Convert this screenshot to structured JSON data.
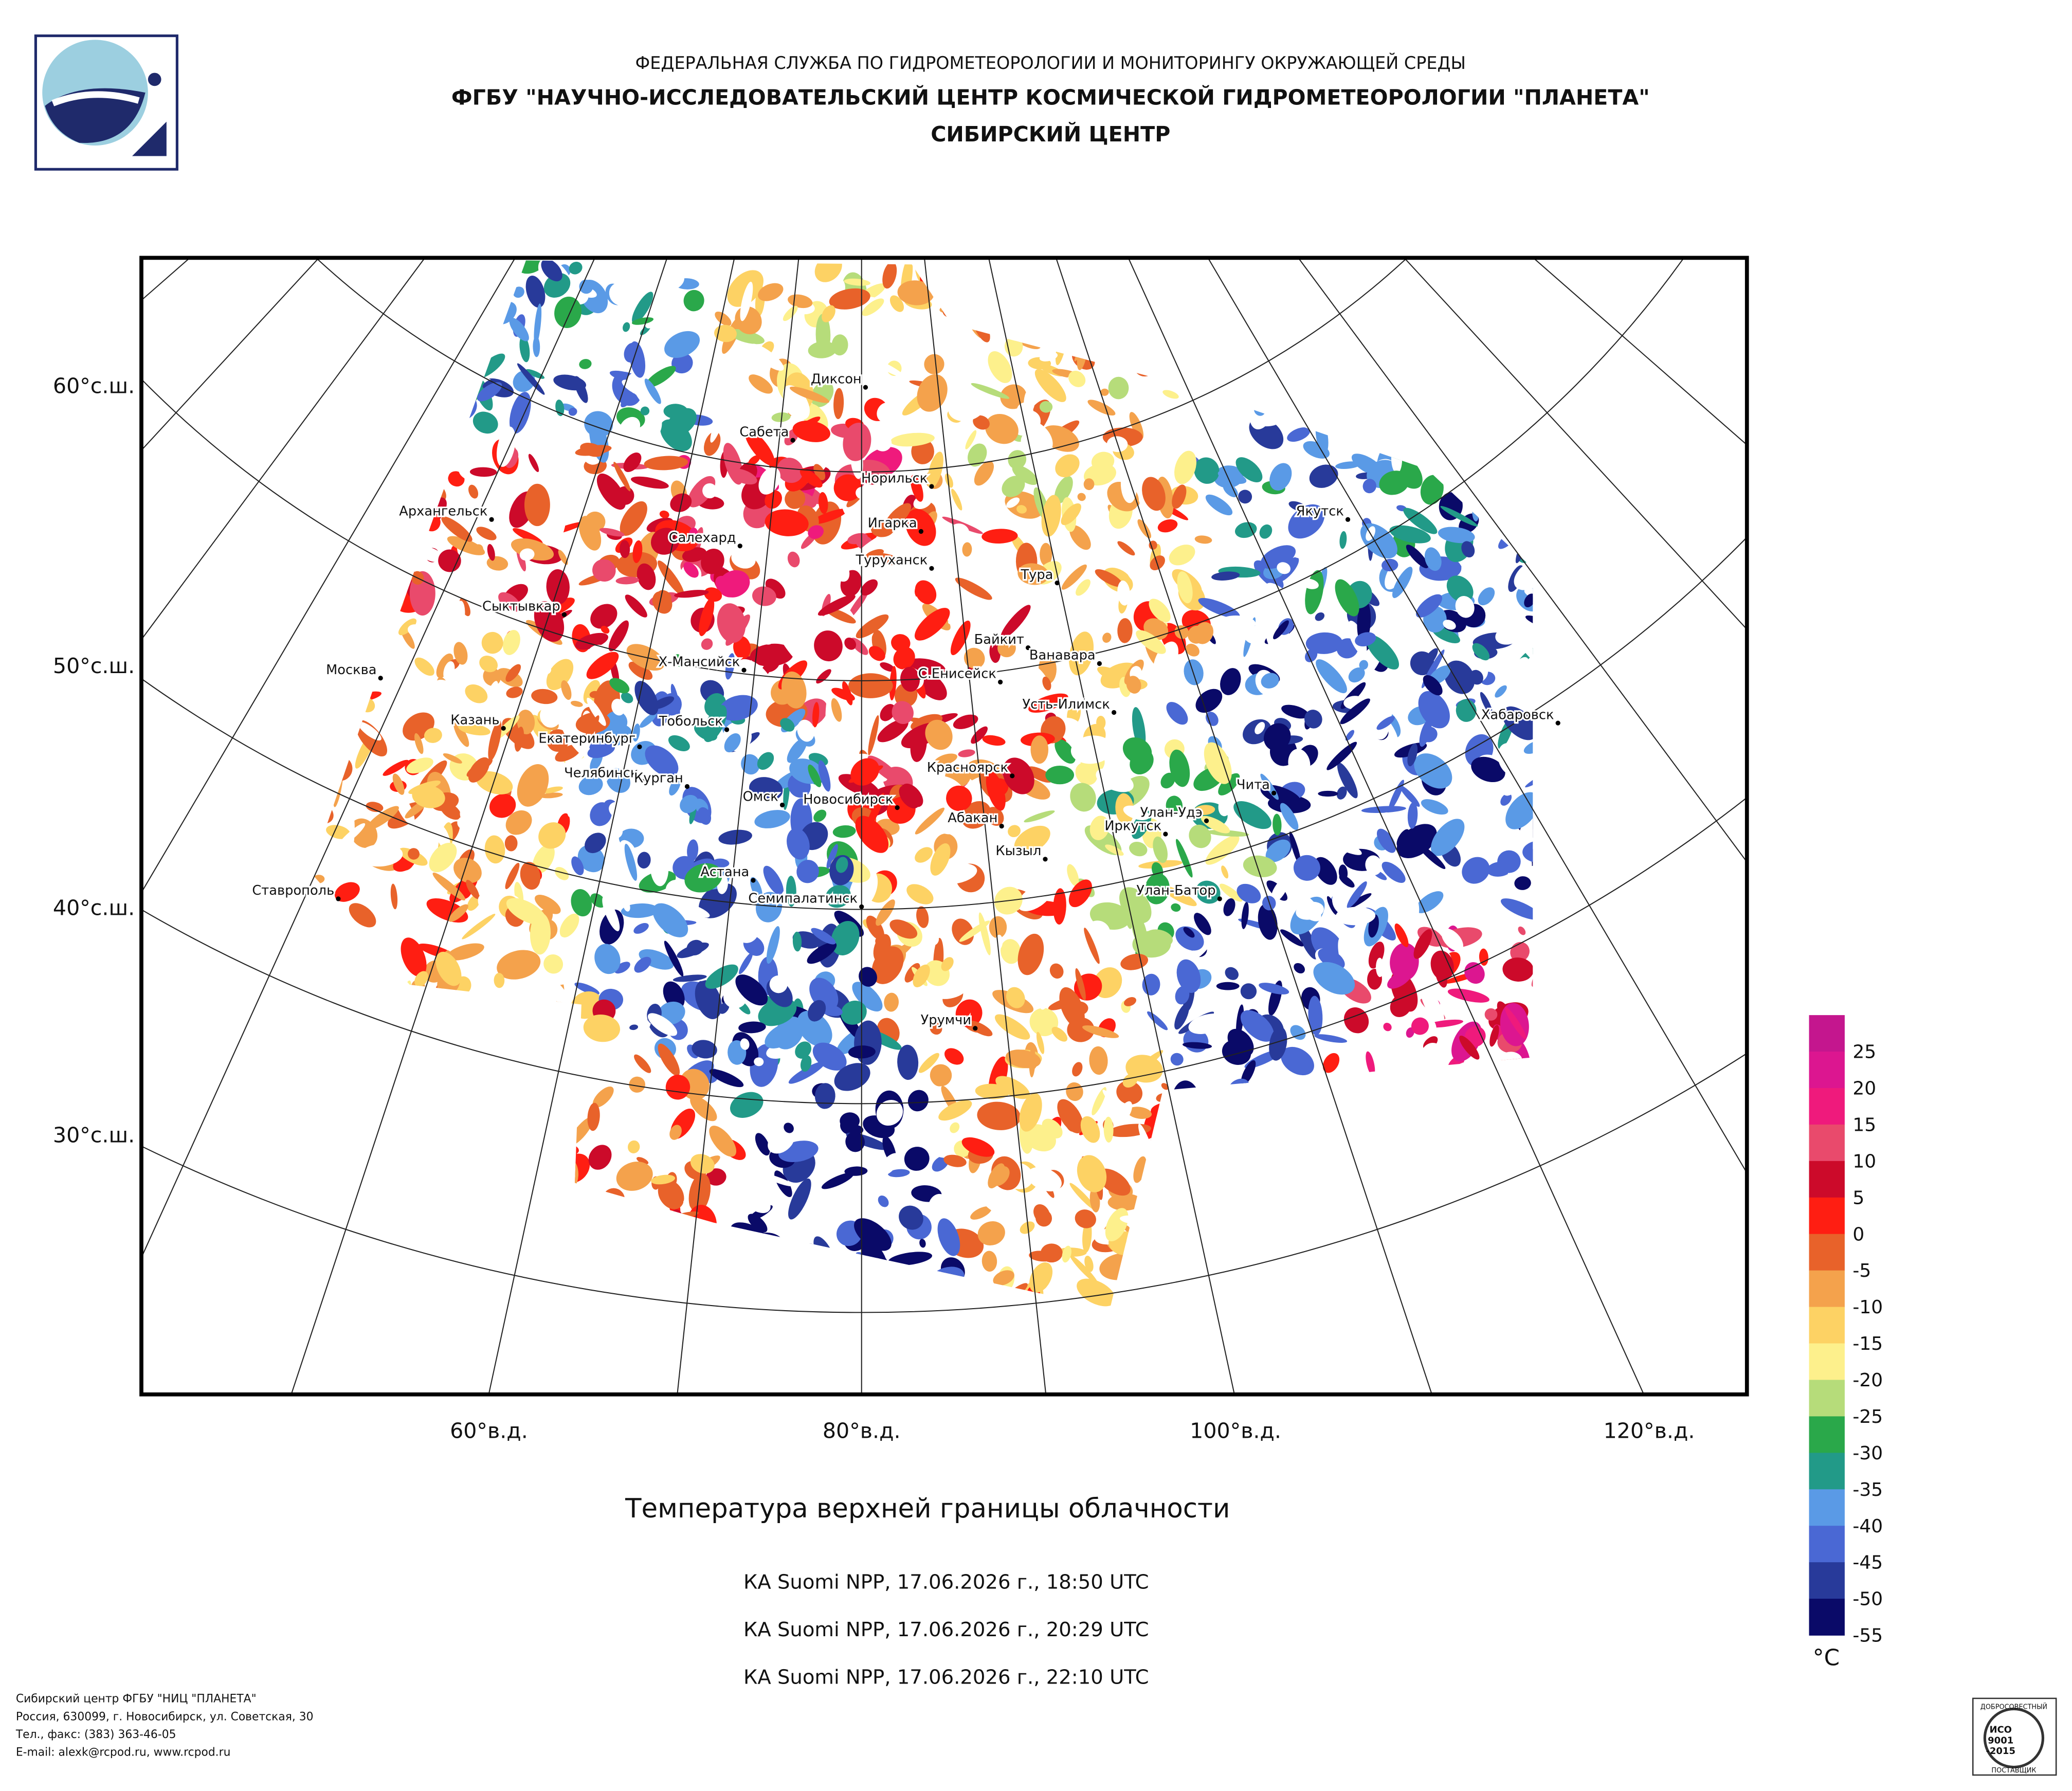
{
  "header": {
    "line1": "ФЕДЕРАЛЬНАЯ СЛУЖБА ПО ГИДРОМЕТЕОРОЛОГИИ И МОНИТОРИНГУ ОКРУЖАЮЩЕЙ СРЕДЫ",
    "line2": "ФГБУ \"НАУЧНО-ИССЛЕДОВАТЕЛЬСКИЙ ЦЕНТР КОСМИЧЕСКОЙ ГИДРОМЕТЕОРОЛОГИИ \"ПЛАНЕТА\"",
    "line3": "СИБИРСКИЙ ЦЕНТР"
  },
  "map": {
    "lat_labels": [
      "60°с.ш.",
      "50°с.ш.",
      "40°с.ш.",
      "30°с.ш."
    ],
    "lon_labels": [
      "60°в.д.",
      "80°в.д.",
      "100°в.д.",
      "120°в.д."
    ],
    "cities": [
      "Диксон",
      "Сабета",
      "Норильск",
      "Игарка",
      "Архангельск",
      "Салехард",
      "Туруханск",
      "Тура",
      "Сыктывкар",
      "Байкит",
      "Ванавара",
      "Москва",
      "Х-Мансийск",
      "С.Енисейск",
      "Усть-Илимск",
      "Якутск",
      "Хабаровск",
      "Казань",
      "Тобольск",
      "Екатеринбург",
      "Красноярск",
      "Челябинск",
      "Курган",
      "Омск",
      "Новосибирск",
      "Чита",
      "Абакан",
      "Улан-Удэ",
      "Иркутск",
      "Кызыл",
      "Астана",
      "Ставрополь",
      "Семипалатинск",
      "Улан-Батор",
      "Урумчи"
    ]
  },
  "legend": {
    "ticks": [
      25,
      20,
      15,
      10,
      5,
      0,
      -5,
      -10,
      -15,
      -20,
      -25,
      -30,
      -35,
      -40,
      -45,
      -50,
      -55
    ],
    "unit": "°C",
    "colors": [
      "#c4168e",
      "#dc1690",
      "#ef1a7c",
      "#e94a6c",
      "#cc0a2a",
      "#ff1e12",
      "#e8622a",
      "#f4a24c",
      "#fdd264",
      "#fdf08c",
      "#b6dc7a",
      "#2aa84a",
      "#229a88",
      "#5a9ae6",
      "#4a68d4",
      "#283a9a",
      "#0a0a68"
    ]
  },
  "title": "Температура верхней границы облачности",
  "passes": [
    "КА Suomi NPP, 17.06.2026 г., 18:50 UTC",
    "КА Suomi NPP, 17.06.2026 г., 20:29 UTC",
    "КА Suomi NPP, 17.06.2026 г., 22:10 UTC"
  ],
  "footer": [
    "Сибирский центр ФГБУ \"НИЦ \"ПЛАНЕТА\"",
    "Россия, 630099, г. Новосибирск, ул. Советская, 30",
    "Тел., факс: (383) 363-46-05",
    "E-mail: alexk@rcpod.ru, www.rcpod.ru"
  ],
  "badge": {
    "top": "ДОБРОСОВЕСТНЫЙ",
    "iso": "ИСО",
    "num": "9001",
    "year": "-2015",
    "bottom": "ПОСТАВЩИК"
  }
}
